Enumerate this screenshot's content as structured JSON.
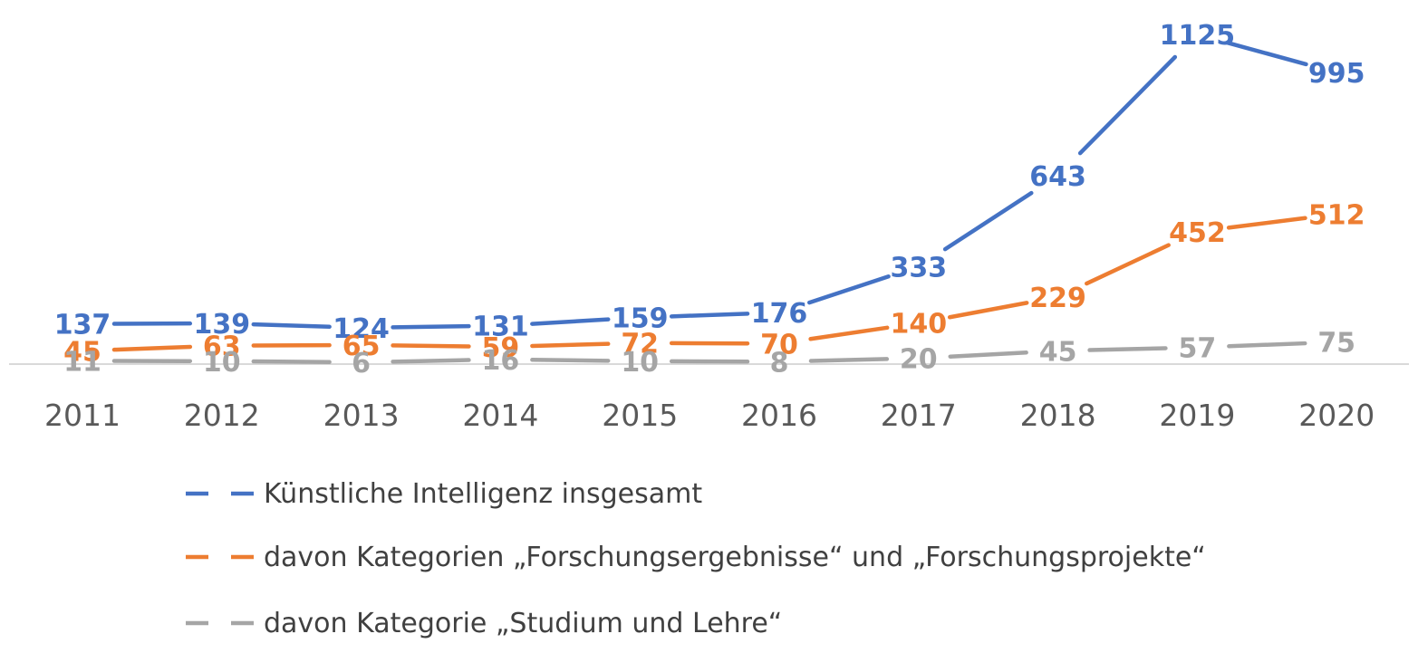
{
  "chart_data": {
    "type": "line",
    "categories": [
      "2011",
      "2012",
      "2013",
      "2014",
      "2015",
      "2016",
      "2017",
      "2018",
      "2019",
      "2020"
    ],
    "series": [
      {
        "name": "Künstliche Intelligenz insgesamt",
        "values": [
          137,
          139,
          124,
          131,
          159,
          176,
          333,
          643,
          1125,
          995
        ],
        "labels": [
          "137",
          "139",
          "124",
          "131",
          "159",
          "176",
          "333",
          "643",
          "1125",
          "995"
        ],
        "color": "#4472C4"
      },
      {
        "name": "davon Kategorien „Forschungsergebnisse“ und „Forschungsprojekte“",
        "values": [
          45,
          63,
          65,
          59,
          72,
          70,
          140,
          229,
          452,
          512
        ],
        "labels": [
          "45",
          "63",
          "65",
          "59",
          "72",
          "70",
          "140",
          "229",
          "452",
          "512"
        ],
        "color": "#ED7D31"
      },
      {
        "name": "davon Kategorie „Studium und Lehre“",
        "values": [
          11,
          10,
          6,
          16,
          10,
          8,
          20,
          45,
          57,
          75
        ],
        "labels": [
          "11",
          "10",
          "6",
          "16",
          "10",
          "8",
          "20",
          "45",
          "57",
          "75"
        ],
        "color": "#A5A5A5"
      }
    ],
    "ylim": [
      0,
      1150
    ],
    "grid": false,
    "legend_position": "bottom",
    "axis_color": "#D9D9D9"
  }
}
